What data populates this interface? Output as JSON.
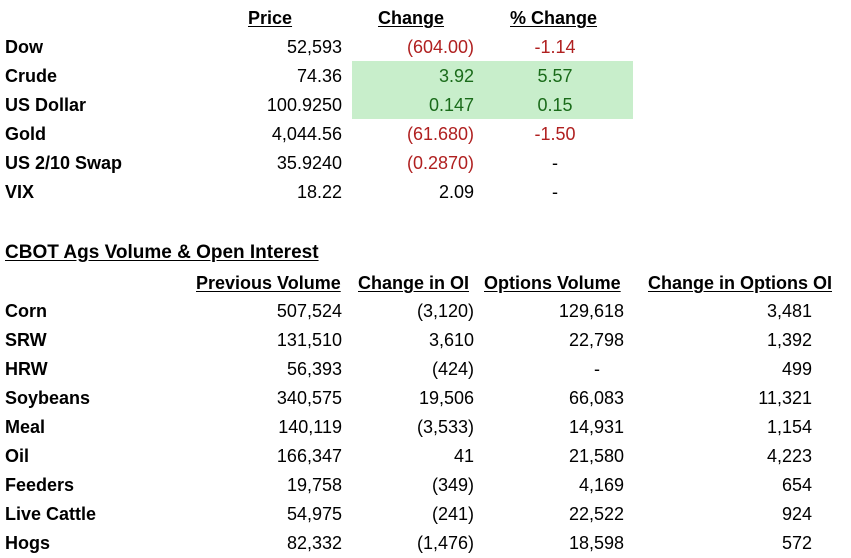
{
  "markets": {
    "headers": {
      "price": "Price",
      "change": "Change",
      "pct_change": "% Change"
    },
    "rows": [
      {
        "name": "Dow",
        "price": "52,593",
        "change": "(604.00)",
        "pct": "-1.14"
      },
      {
        "name": "Crude",
        "price": "74.36",
        "change": "3.92",
        "pct": "5.57"
      },
      {
        "name": "US Dollar",
        "price": "100.9250",
        "change": "0.147",
        "pct": "0.15"
      },
      {
        "name": "Gold",
        "price": "4,044.56",
        "change": "(61.680)",
        "pct": "-1.50"
      },
      {
        "name": "US 2/10 Swap",
        "price": "35.9240",
        "change": "(0.2870)",
        "pct": "-"
      },
      {
        "name": "VIX",
        "price": "18.22",
        "change": "2.09",
        "pct": "-"
      }
    ],
    "colors": {
      "negative": "#b02020",
      "positive": "#1a6b1a",
      "highlight": "#c8eecb"
    }
  },
  "cbot": {
    "title": "CBOT Ags Volume & Open Interest",
    "headers": {
      "prev_volume": "Previous Volume",
      "change_oi": "Change in OI",
      "options_volume": "Options Volume",
      "change_options_oi": "Change in Options OI"
    },
    "rows": [
      {
        "name": "Corn",
        "prev_volume": "507,524",
        "change_oi": "(3,120)",
        "options_volume": "129,618",
        "change_options_oi": "3,481"
      },
      {
        "name": "SRW",
        "prev_volume": "131,510",
        "change_oi": "3,610",
        "options_volume": "22,798",
        "change_options_oi": "1,392"
      },
      {
        "name": "HRW",
        "prev_volume": "56,393",
        "change_oi": "(424)",
        "options_volume": "-",
        "change_options_oi": "499"
      },
      {
        "name": "Soybeans",
        "prev_volume": "340,575",
        "change_oi": "19,506",
        "options_volume": "66,083",
        "change_options_oi": "11,321"
      },
      {
        "name": "Meal",
        "prev_volume": "140,119",
        "change_oi": "(3,533)",
        "options_volume": "14,931",
        "change_options_oi": "1,154"
      },
      {
        "name": "Oil",
        "prev_volume": "166,347",
        "change_oi": "41",
        "options_volume": "21,580",
        "change_options_oi": "4,223"
      },
      {
        "name": "Feeders",
        "prev_volume": "19,758",
        "change_oi": "(349)",
        "options_volume": "4,169",
        "change_options_oi": "654"
      },
      {
        "name": "Live Cattle",
        "prev_volume": "54,975",
        "change_oi": "(241)",
        "options_volume": "22,522",
        "change_options_oi": "924"
      },
      {
        "name": "Hogs",
        "prev_volume": "82,332",
        "change_oi": "(1,476)",
        "options_volume": "18,598",
        "change_options_oi": "572"
      }
    ]
  }
}
